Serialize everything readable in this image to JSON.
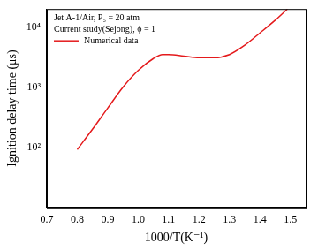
{
  "chart_data": {
    "type": "line",
    "x_label": "1000/T(K⁻¹)",
    "y_label": "Ignition delay time (μs)",
    "annotations": [
      "Jet A-1/Air, P₅ = 20 atm",
      "Current study(Sejong), ϕ = 1"
    ],
    "log": "y",
    "grid": false,
    "legend": "upper left",
    "xlim": [
      0.7,
      1.55
    ],
    "xticks": [
      0.7,
      0.8,
      0.9,
      {
        "value": 1,
        "label": "1.0"
      },
      1.1,
      1.2,
      1.3,
      1.4,
      1.5
    ],
    "ylim": [
      10,
      20000
    ],
    "yticks": [
      {
        "value": 100,
        "label": "10²"
      },
      {
        "value": 1000,
        "label": "10³"
      },
      {
        "value": 10000,
        "label": "10⁴"
      }
    ],
    "series": [
      {
        "name": "Numerical data",
        "color": "#e41a1c",
        "x": [
          0.8,
          0.85,
          0.9,
          0.95,
          1.0,
          1.05,
          1.08,
          1.1,
          1.15,
          1.2,
          1.25,
          1.3,
          1.35,
          1.4,
          1.45,
          1.49
        ],
        "values": [
          92,
          200,
          450,
          1000,
          1900,
          3000,
          3500,
          3500,
          3300,
          3100,
          3100,
          3500,
          5000,
          8000,
          13000,
          20000
        ]
      }
    ]
  }
}
